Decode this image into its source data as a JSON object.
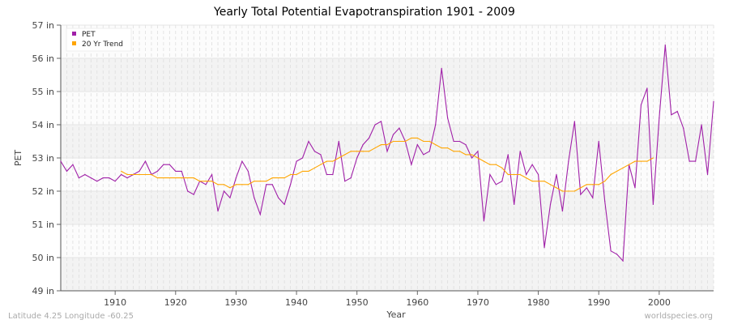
{
  "chart_data": {
    "type": "line",
    "title": "Yearly Total Potential Evapotranspiration 1901 - 2009",
    "xlabel": "Year",
    "ylabel": "PET",
    "xlim": [
      1901,
      2009
    ],
    "ylim": [
      49,
      57
    ],
    "x_ticks": [
      1910,
      1920,
      1930,
      1940,
      1950,
      1960,
      1970,
      1980,
      1990,
      2000
    ],
    "y_ticks": [
      "49 in",
      "50 in",
      "51 in",
      "52 in",
      "53 in",
      "54 in",
      "55 in",
      "56 in",
      "57 in"
    ],
    "grid": true,
    "legend_position": "top-left",
    "series": [
      {
        "name": "PET",
        "color": "#a020a8",
        "start_year": 1901,
        "values": [
          52.9,
          52.6,
          52.8,
          52.4,
          52.5,
          52.4,
          52.3,
          52.4,
          52.4,
          52.3,
          52.5,
          52.4,
          52.5,
          52.6,
          52.9,
          52.5,
          52.6,
          52.8,
          52.8,
          52.6,
          52.6,
          52.0,
          51.9,
          52.3,
          52.2,
          52.5,
          51.4,
          52.0,
          51.8,
          52.4,
          52.9,
          52.6,
          51.8,
          51.3,
          52.2,
          52.2,
          51.8,
          51.6,
          52.2,
          52.9,
          53.0,
          53.5,
          53.2,
          53.1,
          52.5,
          52.5,
          53.5,
          52.3,
          52.4,
          53.0,
          53.4,
          53.6,
          54.0,
          54.1,
          53.2,
          53.7,
          53.9,
          53.5,
          52.8,
          53.4,
          53.1,
          53.2,
          54.0,
          55.7,
          54.2,
          53.5,
          53.5,
          53.4,
          53.0,
          53.2,
          51.1,
          52.5,
          52.2,
          52.3,
          53.1,
          51.6,
          53.2,
          52.5,
          52.8,
          52.5,
          50.3,
          51.6,
          52.5,
          51.4,
          52.9,
          54.1,
          51.9,
          52.1,
          51.8,
          53.5,
          51.7,
          50.2,
          50.1,
          49.9,
          52.8,
          52.1,
          54.6,
          55.1,
          51.6,
          54.2,
          56.4,
          54.3,
          54.4,
          53.9,
          52.9,
          52.9,
          54.0,
          52.5,
          54.7
        ]
      },
      {
        "name": "20 Yr Trend",
        "color": "#ffa500",
        "start_year": 1911,
        "values": [
          52.6,
          52.5,
          52.5,
          52.5,
          52.5,
          52.5,
          52.4,
          52.4,
          52.4,
          52.4,
          52.4,
          52.4,
          52.4,
          52.3,
          52.3,
          52.3,
          52.2,
          52.2,
          52.1,
          52.2,
          52.2,
          52.2,
          52.3,
          52.3,
          52.3,
          52.4,
          52.4,
          52.4,
          52.5,
          52.5,
          52.6,
          52.6,
          52.7,
          52.8,
          52.9,
          52.9,
          53.0,
          53.1,
          53.2,
          53.2,
          53.2,
          53.2,
          53.3,
          53.4,
          53.4,
          53.5,
          53.5,
          53.5,
          53.6,
          53.6,
          53.5,
          53.5,
          53.4,
          53.3,
          53.3,
          53.2,
          53.2,
          53.1,
          53.1,
          53.0,
          52.9,
          52.8,
          52.8,
          52.7,
          52.5,
          52.5,
          52.5,
          52.4,
          52.3,
          52.3,
          52.3,
          52.2,
          52.1,
          52.0,
          52.0,
          52.0,
          52.1,
          52.2,
          52.2,
          52.2,
          52.3,
          52.5,
          52.6,
          52.7,
          52.8,
          52.9,
          52.9,
          52.9,
          53.0
        ]
      }
    ]
  },
  "footer": {
    "left": "Latitude 4.25 Longitude -60.25",
    "right": "worldspecies.org"
  }
}
